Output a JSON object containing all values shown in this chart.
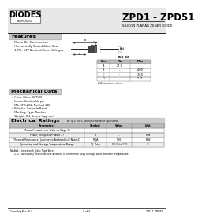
{
  "bg_color": "#ffffff",
  "header_bg": "#e8e8e8",
  "section_bg": "#cccccc",
  "title_main": "ZPD1 - ZPD51",
  "title_sub": "SILICON PLANAR ZENER DIODE",
  "logo_text": "DIODES",
  "logo_sub": "INCORPORATED",
  "section_features": "Features",
  "features": [
    "Planar Die Construction",
    "Hermetically Sealed Glass Case",
    "1.7V - 51V Nominal Zener Voltages"
  ],
  "section_mech": "Mechanical Data",
  "mech_items": [
    "Case: Glass, SOD80",
    "Leads: Solderable per",
    "MIL-STD-202, Method 208",
    "Polarity: Cathode Band",
    "Marking: Type Number",
    "Weight: 0.1 Grams (approx.)"
  ],
  "section_ratings": "Electrical Ratings",
  "ratings_note": "at TJ = 25°C unless otherwise specified",
  "ratings_headers": [
    "Parameters",
    "Symbol",
    "Value",
    "Unit"
  ],
  "ratings_rows": [
    [
      "Zener Current (see Table on Page 2)",
      "--",
      "--",
      "--"
    ],
    [
      "Power Dissipation (Note 2)",
      "Pt",
      "--",
      "mW"
    ],
    [
      "Thermal Resistance, Junction to Ambient (c) (Note 2)",
      "RθJA",
      "500",
      "K/W"
    ],
    [
      "Operating and Storage Temperature Range",
      "TJ, Tstg",
      "-55°C to 175",
      "°C"
    ]
  ],
  "footer_left": "Comchip Rev. B.4",
  "footer_mid": "1 of 4",
  "footer_right": "ZPD 1-ZPD51",
  "table_iso": "ISO-68",
  "table_dim_headers": [
    "Dim",
    "Min",
    "Max"
  ],
  "table_dim_rows": [
    [
      "A",
      "27.0",
      "--"
    ],
    [
      "B",
      "--",
      "4.00"
    ],
    [
      "C",
      "--",
      "3.60"
    ],
    [
      "D",
      "--",
      "1.21"
    ]
  ],
  "notes": [
    "1. Tested with Jedec Type Wires",
    "2. Individually this leads to a distance of 6mm from body through all of ambient temperature"
  ]
}
